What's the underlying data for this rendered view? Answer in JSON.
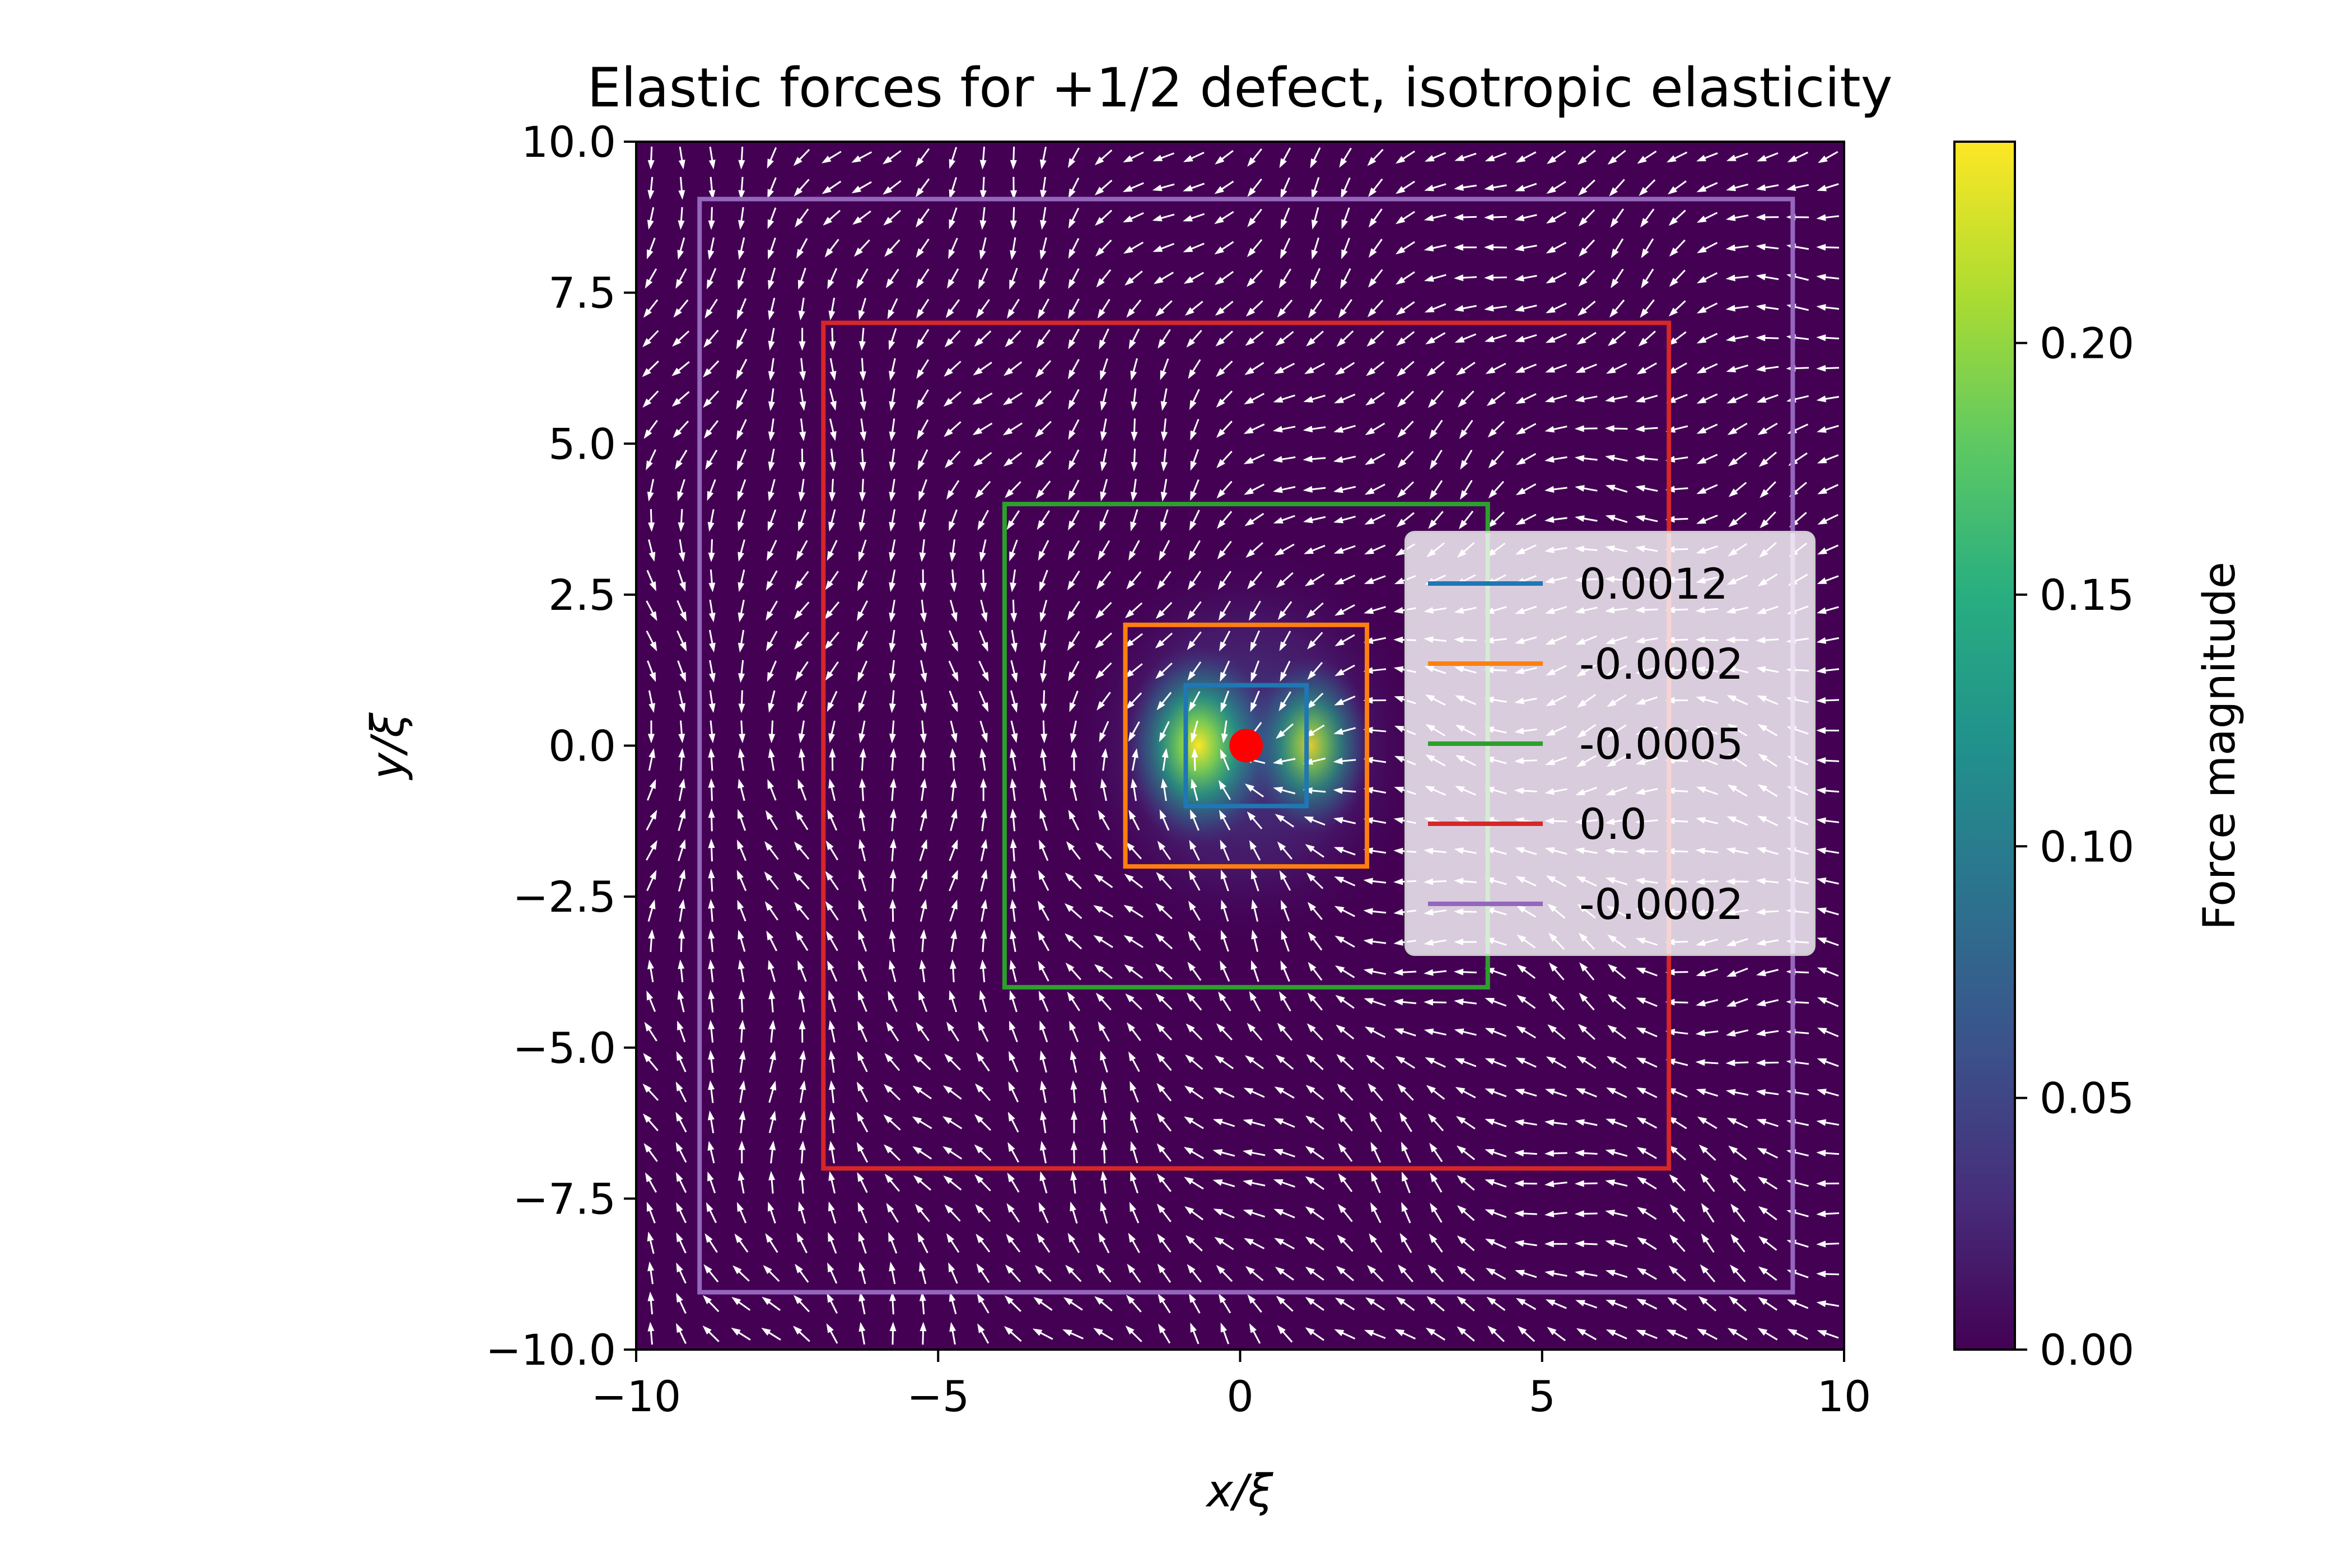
{
  "chart_data": {
    "type": "heatmap",
    "title": "Elastic forces for +1/2 defect, isotropic elasticity",
    "xlabel": "x/ξ",
    "ylabel": "y/ξ",
    "xlim": [
      -10,
      10
    ],
    "ylim": [
      -10,
      10
    ],
    "xticks": [
      -10,
      -5,
      0,
      5,
      10
    ],
    "xtick_labels": [
      "−10",
      "−5",
      "0",
      "5",
      "10"
    ],
    "yticks": [
      10,
      7.5,
      5,
      2.5,
      0,
      -2.5,
      -5,
      -7.5,
      -10
    ],
    "ytick_labels": [
      "10.0",
      "7.5",
      "5.0",
      "2.5",
      "0.0",
      "−2.5",
      "−5.0",
      "−7.5",
      "−10.0"
    ],
    "grid": false,
    "colormap": "viridis",
    "colorbar": {
      "label": "Force magnitude",
      "range": [
        0,
        0.24
      ],
      "ticks": [
        0,
        0.05,
        0.1,
        0.15,
        0.2
      ],
      "tick_labels": [
        "0.00",
        "0.05",
        "0.10",
        "0.15",
        "0.20"
      ]
    },
    "peak_magnitude": 0.24,
    "quiver": {
      "color": "#ffffff",
      "spacing": 0.5
    },
    "defect": {
      "x": 0.1,
      "y": 0,
      "color": "#ff0000"
    },
    "legend_placement": "center-right",
    "contours": [
      {
        "half_width": 1.0,
        "center_x": 0.1,
        "label": "0.0012",
        "color": "#1f77b4"
      },
      {
        "half_width": 2.0,
        "center_x": 0.1,
        "label": "-0.0002",
        "color": "#ff7f0e"
      },
      {
        "half_width": 4.0,
        "center_x": 0.1,
        "label": "-0.0005",
        "color": "#2ca02c"
      },
      {
        "half_width": 7.0,
        "center_x": 0.1,
        "label": "0.0",
        "color": "#d62728"
      },
      {
        "half_width": 9.05,
        "center_x": 0.1,
        "label": "-0.0002",
        "color": "#9467bd"
      }
    ]
  }
}
